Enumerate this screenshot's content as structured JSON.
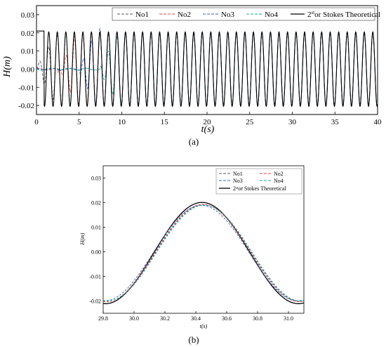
{
  "chart_data": [
    {
      "type": "line",
      "ylabel": "H(m)",
      "xlabel": "t(s)",
      "caption": "(a)",
      "xlim": [
        0,
        40
      ],
      "ylim": [
        -0.025,
        0.035
      ],
      "xticks": [
        "0",
        "5",
        "10",
        "15",
        "20",
        "25",
        "30",
        "35",
        "40"
      ],
      "yticks": [
        "-0.02",
        "-0.01",
        "0.00",
        "0.01",
        "0.02",
        "0.03"
      ],
      "grid": false,
      "legend_position": "top-right",
      "wave": {
        "amplitude": 0.0205,
        "period": 1.0,
        "phase": 0.44
      },
      "series": [
        {
          "name": "No1",
          "color": "#555555",
          "style": "dashed",
          "onset": 1.0
        },
        {
          "name": "No2",
          "color": "#e8413c",
          "style": "dashed",
          "onset": 3.5
        },
        {
          "name": "No3",
          "color": "#2f5fd6",
          "style": "dashed",
          "onset": 6.0
        },
        {
          "name": "No4",
          "color": "#1aa88c",
          "style": "dashed",
          "onset": 8.5
        },
        {
          "name": "2",
          "sup": "st",
          "suffix": "or Stokes Theoretical",
          "color": "#000000",
          "style": "solid",
          "onset": 0
        }
      ]
    },
    {
      "type": "line",
      "ylabel": "H(m)",
      "xlabel": "t(s)",
      "caption": "(b)",
      "xlim": [
        29.8,
        31.1
      ],
      "ylim": [
        -0.025,
        0.035
      ],
      "xticks": [
        "29.8",
        "30.0",
        "30.2",
        "30.4",
        "30.6",
        "30.8",
        "31.0"
      ],
      "yticks": [
        "-0.02",
        "-0.01",
        "0.00",
        "0.01",
        "0.02",
        "0.03"
      ],
      "grid": false,
      "legend_position": "top-right",
      "wave": {
        "amplitude": 0.02,
        "period": 1.25,
        "phase": 30.44
      },
      "series": [
        {
          "name": "No1",
          "color": "#555555",
          "style": "dashed",
          "scale": 0.98,
          "shift": 0.01
        },
        {
          "name": "No2",
          "color": "#e8413c",
          "style": "dashed",
          "scale": 0.99,
          "shift": 0.005
        },
        {
          "name": "No3",
          "color": "#2f5fd6",
          "style": "dashed",
          "scale": 0.97,
          "shift": -0.005
        },
        {
          "name": "No4",
          "color": "#1aa88c",
          "style": "dashed",
          "scale": 0.975,
          "shift": 0.015
        },
        {
          "name": "2",
          "sup": "st",
          "suffix": "or Stokes Theoretical",
          "color": "#000000",
          "style": "solid",
          "scale": 1.03,
          "shift": 0
        }
      ]
    }
  ]
}
